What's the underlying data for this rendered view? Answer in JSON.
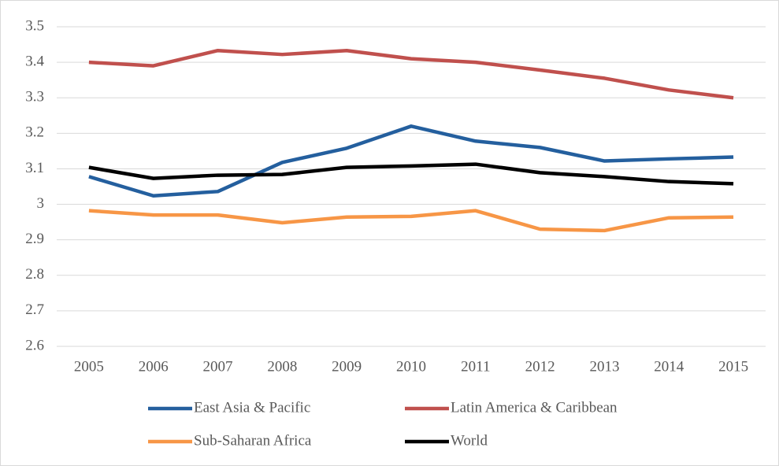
{
  "chart_data": {
    "type": "line",
    "categories": [
      "2005",
      "2006",
      "2007",
      "2008",
      "2009",
      "2010",
      "2011",
      "2012",
      "2013",
      "2014",
      "2015"
    ],
    "series": [
      {
        "name": "East Asia & Pacific",
        "color": "#245f9e",
        "values": [
          3.078,
          3.024,
          3.036,
          3.118,
          3.158,
          3.22,
          3.178,
          3.16,
          3.122,
          3.128,
          3.133
        ]
      },
      {
        "name": "Latin America & Caribbean",
        "color": "#c0504d",
        "values": [
          3.4,
          3.39,
          3.433,
          3.422,
          3.433,
          3.41,
          3.4,
          3.378,
          3.355,
          3.322,
          3.3
        ]
      },
      {
        "name": "Sub-Saharan Africa",
        "color": "#f79646",
        "values": [
          2.982,
          2.97,
          2.97,
          2.948,
          2.964,
          2.966,
          2.982,
          2.93,
          2.926,
          2.962,
          2.964
        ]
      },
      {
        "name": "World",
        "color": "#000000",
        "values": [
          3.104,
          3.073,
          3.082,
          3.084,
          3.104,
          3.108,
          3.113,
          3.089,
          3.078,
          3.064,
          3.058
        ]
      }
    ],
    "ylim": [
      2.6,
      3.5
    ],
    "yticks": [
      2.6,
      2.7,
      2.8,
      2.9,
      3,
      3.1,
      3.2,
      3.3,
      3.4,
      3.5
    ],
    "grid": true,
    "legend": "bottom"
  }
}
